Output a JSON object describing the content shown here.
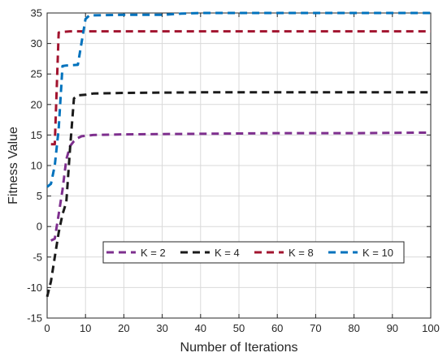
{
  "chart_data": {
    "type": "line",
    "title": "",
    "xlabel": "Number of Iterations",
    "ylabel": "Fitness Value",
    "xlim": [
      0,
      100
    ],
    "ylim": [
      -15,
      35
    ],
    "xticks": [
      0,
      10,
      20,
      30,
      40,
      50,
      60,
      70,
      80,
      90,
      100
    ],
    "yticks": [
      -15,
      -10,
      -5,
      0,
      5,
      10,
      15,
      20,
      25,
      30,
      35
    ],
    "xtick_labels": [
      "0",
      "10",
      "20",
      "30",
      "40",
      "50",
      "60",
      "70",
      "80",
      "90",
      "100"
    ],
    "ytick_labels": [
      "-15",
      "-10",
      "-5",
      "0",
      "5",
      "10",
      "15",
      "20",
      "25",
      "30",
      "35"
    ],
    "grid": true,
    "legend_position": "lower-center, single row",
    "series": [
      {
        "name": "K = 2",
        "color": "#7e2f8e",
        "x": [
          1,
          2,
          3,
          4,
          5,
          6,
          7,
          8,
          9,
          12,
          20,
          40,
          60,
          80,
          100
        ],
        "y": [
          -2.3,
          -2.0,
          2.0,
          6.0,
          11.0,
          13.2,
          14.0,
          14.5,
          14.8,
          15.0,
          15.1,
          15.2,
          15.3,
          15.3,
          15.4
        ]
      },
      {
        "name": "K = 4",
        "color": "#1a1a1a",
        "x": [
          0,
          1,
          2,
          3,
          4,
          5,
          6,
          7,
          8,
          10,
          12,
          20,
          40,
          60,
          80,
          100
        ],
        "y": [
          -11.5,
          -9.0,
          -5.0,
          -1.0,
          2.0,
          4.0,
          13.0,
          21.0,
          21.5,
          21.6,
          21.8,
          21.9,
          22.0,
          22.0,
          22.0,
          22.0
        ]
      },
      {
        "name": "K = 8",
        "color": "#a2142f",
        "x": [
          1,
          2,
          3,
          4,
          6,
          10,
          20,
          40,
          60,
          80,
          100
        ],
        "y": [
          13.5,
          13.5,
          31.8,
          31.9,
          32.0,
          32.0,
          32.0,
          32.0,
          32.0,
          32.0,
          32.0
        ]
      },
      {
        "name": "K = 10",
        "color": "#0072bd",
        "x": [
          0,
          1,
          2,
          3,
          4,
          5,
          8,
          10,
          11,
          20,
          30,
          35,
          40,
          60,
          80,
          100
        ],
        "y": [
          6.5,
          7.0,
          10.0,
          16.0,
          26.3,
          26.4,
          26.5,
          34.0,
          34.6,
          34.7,
          34.7,
          34.9,
          35.0,
          35.0,
          35.0,
          35.0
        ]
      }
    ]
  }
}
